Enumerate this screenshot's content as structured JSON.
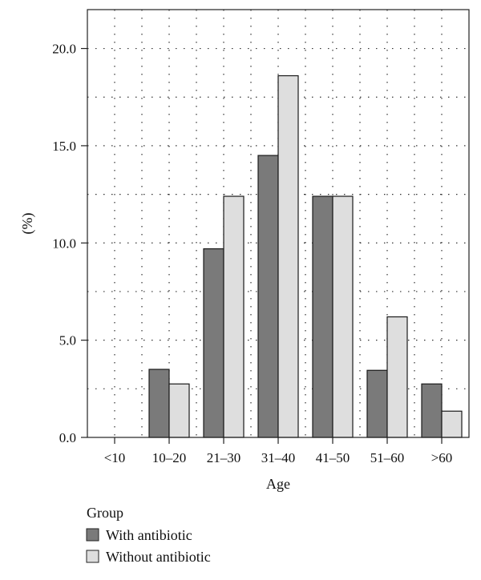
{
  "chart_data": {
    "type": "bar",
    "categories": [
      "<10",
      "10–20",
      "21–30",
      "31–40",
      "41–50",
      "51–60",
      ">60"
    ],
    "series": [
      {
        "name": "With antibiotic",
        "values": [
          0,
          3.5,
          9.7,
          14.5,
          12.4,
          3.45,
          2.75
        ],
        "color": "#7a7a7a"
      },
      {
        "name": "Without antibiotic",
        "values": [
          0,
          2.75,
          12.4,
          18.6,
          12.4,
          6.2,
          1.35
        ],
        "color": "#dedede"
      }
    ],
    "xlabel": "Age",
    "ylabel": "(%)",
    "ylim": [
      0,
      22
    ],
    "yticks": [
      0,
      5,
      10,
      15,
      20
    ],
    "ytick_labels": [
      "0.0",
      "5.0",
      "10.0",
      "15.0",
      "20.0"
    ],
    "grid": true,
    "legend": {
      "title": "Group",
      "placement": "bottom-left"
    }
  }
}
